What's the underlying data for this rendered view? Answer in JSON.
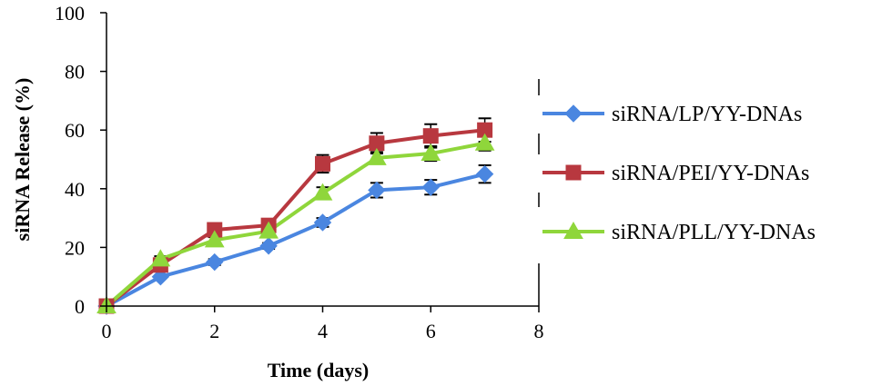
{
  "chart_data": {
    "type": "line",
    "title": "",
    "xlabel": "Time (days)",
    "ylabel": "siRNA Release (%)",
    "xlim": [
      0,
      8
    ],
    "ylim": [
      0,
      100
    ],
    "xticks": [
      0,
      2,
      4,
      6,
      8
    ],
    "yticks": [
      0,
      20,
      40,
      60,
      80,
      100
    ],
    "grid": false,
    "legend_position": "right",
    "x": [
      0,
      1,
      2,
      3,
      4,
      5,
      6,
      7
    ],
    "series": [
      {
        "name": "siRNA/LP/YY-DNAs",
        "color": "#4a86e0",
        "marker": "diamond",
        "values": [
          0,
          10,
          15,
          20.5,
          28.5,
          39.5,
          40.5,
          45
        ],
        "errors": [
          0,
          0.5,
          1,
          1,
          1.5,
          2.5,
          2.5,
          3
        ]
      },
      {
        "name": "siRNA/PEI/YY-DNAs",
        "color": "#b8383f",
        "marker": "square",
        "values": [
          0,
          14,
          26,
          27.5,
          48.5,
          55.5,
          58,
          60
        ],
        "errors": [
          0,
          1,
          1.5,
          1.5,
          3,
          3.5,
          4,
          4
        ]
      },
      {
        "name": "siRNA/PLL/YY-DNAs",
        "color": "#8fd63b",
        "marker": "triangle",
        "values": [
          0,
          16,
          22.5,
          25.5,
          38.5,
          50.5,
          52,
          55.5
        ],
        "errors": [
          0,
          1,
          1,
          1,
          2,
          2,
          2.5,
          2.5
        ]
      }
    ]
  }
}
